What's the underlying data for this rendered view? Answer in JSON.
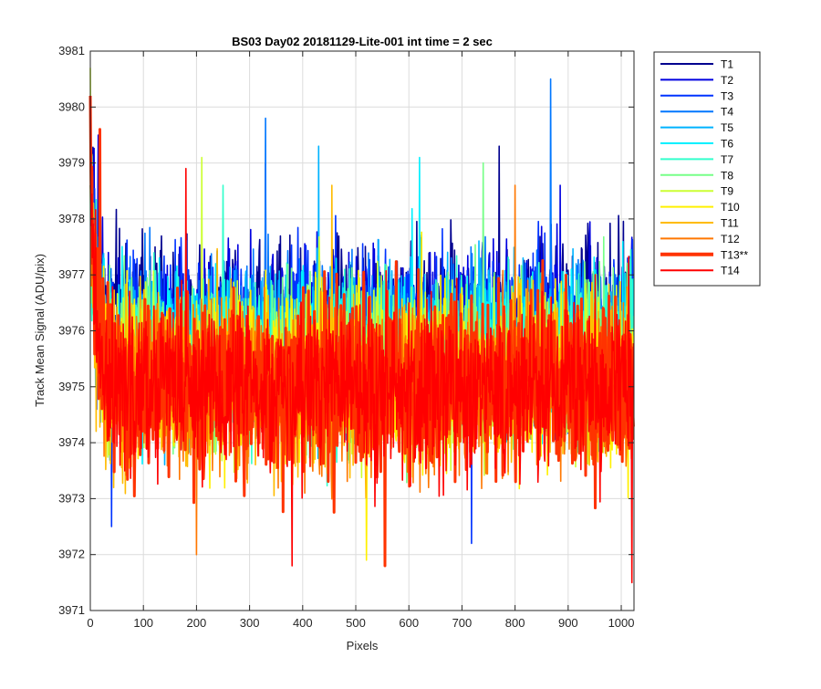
{
  "chart_data": {
    "type": "line",
    "title": "BS03 Day02 20181129-Lite-001 int time = 2 sec",
    "xlabel": "Pixels",
    "ylabel": "Track Mean Signal (ADU/pix)",
    "xlim": [
      0,
      1024
    ],
    "ylim": [
      3971,
      3981
    ],
    "xticks": [
      0,
      100,
      200,
      300,
      400,
      500,
      600,
      700,
      800,
      900,
      1000
    ],
    "yticks": [
      3971,
      3972,
      3973,
      3974,
      3975,
      3976,
      3977,
      3978,
      3979,
      3980,
      3981
    ],
    "grid": true,
    "legend_placement": "outside-right",
    "highlight_series": "T13**",
    "series": [
      {
        "name": "T1",
        "color": "#00008F",
        "mean": 3976.2,
        "spread": 1.05,
        "start": 3978.6,
        "extremes": [
          [
            330,
            3979.0
          ],
          [
            770,
            3979.3
          ]
        ]
      },
      {
        "name": "T2",
        "color": "#0000E0",
        "mean": 3976.0,
        "spread": 1.05,
        "start": 3979.5,
        "extremes": [
          [
            15,
            3979.5
          ],
          [
            885,
            3978.6
          ]
        ]
      },
      {
        "name": "T3",
        "color": "#0033FF",
        "mean": 3975.9,
        "spread": 1.05,
        "start": 3979.2,
        "extremes": [
          [
            40,
            3972.5
          ],
          [
            718,
            3972.2
          ]
        ]
      },
      {
        "name": "T4",
        "color": "#0077FF",
        "mean": 3975.8,
        "spread": 1.05,
        "start": 3979.6,
        "extremes": [
          [
            867,
            3980.5
          ],
          [
            330,
            3979.8
          ]
        ]
      },
      {
        "name": "T5",
        "color": "#00B3FF",
        "mean": 3975.7,
        "spread": 1.05,
        "start": 3979.3,
        "extremes": [
          [
            430,
            3979.3
          ]
        ]
      },
      {
        "name": "T6",
        "color": "#00F0FF",
        "mean": 3975.6,
        "spread": 1.05,
        "start": 3979.0,
        "extremes": [
          [
            620,
            3979.1
          ]
        ]
      },
      {
        "name": "T7",
        "color": "#33FFCC",
        "mean": 3975.5,
        "spread": 1.05,
        "start": 3978.9,
        "extremes": [
          [
            250,
            3978.6
          ]
        ]
      },
      {
        "name": "T8",
        "color": "#77FF88",
        "mean": 3975.4,
        "spread": 1.05,
        "start": 3978.6,
        "extremes": [
          [
            740,
            3979.0
          ]
        ]
      },
      {
        "name": "T9",
        "color": "#CCFF33",
        "mean": 3975.3,
        "spread": 1.05,
        "start": 3980.7,
        "extremes": [
          [
            210,
            3979.1
          ]
        ]
      },
      {
        "name": "T10",
        "color": "#FFF000",
        "mean": 3975.2,
        "spread": 1.1,
        "start": 3979.8,
        "extremes": [
          [
            520,
            3971.9
          ]
        ]
      },
      {
        "name": "T11",
        "color": "#FFBB00",
        "mean": 3975.1,
        "spread": 1.1,
        "start": 3979.5,
        "extremes": [
          [
            455,
            3978.6
          ]
        ]
      },
      {
        "name": "T12",
        "color": "#FF7700",
        "mean": 3975.0,
        "spread": 1.1,
        "start": 3979.9,
        "extremes": [
          [
            200,
            3972.0
          ],
          [
            800,
            3978.6
          ]
        ]
      },
      {
        "name": "T13**",
        "color": "#FF3300",
        "mean": 3975.0,
        "spread": 1.1,
        "start": 3980.2,
        "extremes": [
          [
            555,
            3971.8
          ],
          [
            18,
            3979.6
          ]
        ]
      },
      {
        "name": "T14",
        "color": "#FF0000",
        "mean": 3975.0,
        "spread": 1.1,
        "start": 3980.2,
        "extremes": [
          [
            1020,
            3971.5
          ],
          [
            380,
            3971.8
          ],
          [
            180,
            3978.9
          ]
        ]
      }
    ]
  }
}
